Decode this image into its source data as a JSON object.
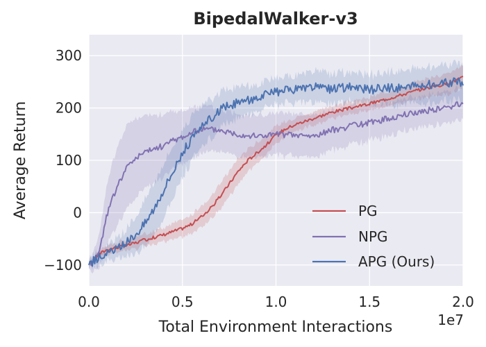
{
  "chart_data": {
    "type": "line",
    "title": "BipedalWalker-v3",
    "xlabel": "Total Environment Interactions",
    "ylabel": "Average Return",
    "x_scale_label": "1e7",
    "xlim": [
      0,
      2.0
    ],
    "ylim": [
      -140,
      340
    ],
    "x_ticks": [
      0.0,
      0.5,
      1.0,
      1.5,
      2.0
    ],
    "x_tick_labels": [
      "0.0",
      "0.5",
      "1.0",
      "1.5",
      "2.0"
    ],
    "y_ticks": [
      -100,
      0,
      100,
      200,
      300
    ],
    "y_tick_labels": [
      "−100",
      "0",
      "100",
      "200",
      "300"
    ],
    "grid": true,
    "legend_position": "lower-right",
    "background": "#EAEAF2",
    "series": [
      {
        "name": "PG",
        "color": "#C44E52",
        "x": [
          0.0,
          0.05,
          0.1,
          0.2,
          0.3,
          0.4,
          0.5,
          0.55,
          0.6,
          0.65,
          0.7,
          0.75,
          0.8,
          0.85,
          0.9,
          0.95,
          1.0,
          1.05,
          1.1,
          1.2,
          1.3,
          1.4,
          1.5,
          1.6,
          1.7,
          1.8,
          1.9,
          2.0
        ],
        "y": [
          -100,
          -80,
          -70,
          -63,
          -52,
          -42,
          -30,
          -22,
          -8,
          8,
          30,
          55,
          80,
          100,
          115,
          130,
          148,
          160,
          168,
          180,
          192,
          200,
          208,
          218,
          228,
          238,
          245,
          258
        ],
        "band": [
          5,
          8,
          8,
          10,
          12,
          14,
          16,
          18,
          20,
          22,
          25,
          25,
          25,
          22,
          20,
          18,
          16,
          15,
          14,
          12,
          12,
          12,
          12,
          14,
          16,
          18,
          20,
          22
        ]
      },
      {
        "name": "NPG",
        "color": "#8172B2",
        "x": [
          0.0,
          0.05,
          0.1,
          0.15,
          0.2,
          0.25,
          0.3,
          0.35,
          0.4,
          0.45,
          0.5,
          0.55,
          0.6,
          0.7,
          0.8,
          0.9,
          1.0,
          1.1,
          1.2,
          1.3,
          1.4,
          1.5,
          1.6,
          1.7,
          1.8,
          1.9,
          2.0
        ],
        "y": [
          -100,
          -80,
          0,
          50,
          85,
          105,
          115,
          122,
          128,
          138,
          145,
          152,
          160,
          158,
          150,
          146,
          150,
          148,
          146,
          158,
          165,
          172,
          180,
          188,
          195,
          200,
          208
        ],
        "band": [
          10,
          30,
          60,
          75,
          80,
          75,
          70,
          65,
          60,
          55,
          50,
          48,
          45,
          40,
          40,
          40,
          40,
          40,
          40,
          38,
          36,
          34,
          32,
          30,
          30,
          30,
          30
        ]
      },
      {
        "name": "APG (Ours)",
        "color": "#4C72B0",
        "x": [
          0.0,
          0.05,
          0.1,
          0.15,
          0.2,
          0.25,
          0.3,
          0.35,
          0.4,
          0.45,
          0.5,
          0.55,
          0.6,
          0.65,
          0.7,
          0.75,
          0.8,
          0.85,
          0.9,
          1.0,
          1.1,
          1.2,
          1.3,
          1.4,
          1.5,
          1.6,
          1.7,
          1.8,
          1.9,
          2.0
        ],
        "y": [
          -100,
          -85,
          -78,
          -70,
          -58,
          -40,
          -20,
          10,
          45,
          80,
          115,
          140,
          160,
          180,
          195,
          205,
          210,
          215,
          220,
          230,
          235,
          240,
          235,
          240,
          235,
          238,
          240,
          245,
          248,
          250
        ],
        "band": [
          8,
          12,
          15,
          20,
          25,
          35,
          45,
          50,
          50,
          48,
          45,
          42,
          40,
          38,
          35,
          32,
          30,
          28,
          26,
          25,
          25,
          30,
          30,
          28,
          28,
          30,
          32,
          35,
          35,
          35
        ]
      }
    ]
  }
}
